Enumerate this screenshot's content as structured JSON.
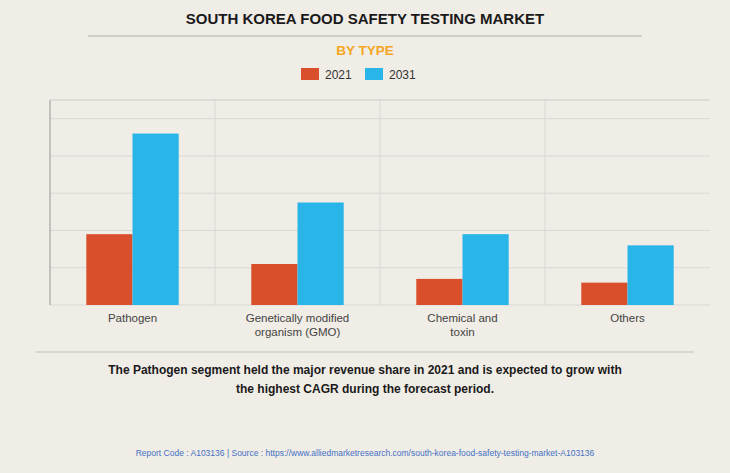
{
  "chart_data": {
    "type": "bar",
    "title": "SOUTH KOREA FOOD SAFETY TESTING MARKET",
    "subtitle": "BY TYPE",
    "categories": [
      "Pathogen",
      "Genetically modified\norganism (GMO)",
      "Chemical and\ntoxin",
      "Others"
    ],
    "series": [
      {
        "name": "2021",
        "color": "#d94f2b",
        "values": [
          38,
          22,
          14,
          12
        ]
      },
      {
        "name": "2031",
        "color": "#29b5e8",
        "values": [
          92,
          55,
          38,
          32
        ]
      }
    ],
    "ylim": [
      0,
      110
    ],
    "yticks": [
      0,
      20,
      40,
      60,
      80,
      100
    ],
    "grid": true,
    "legend": "top",
    "tick_labels": "x",
    "annotations": [
      "The Pathogen segment held the major revenue share in 2021 and is expected to grow with\nthe highest CAGR during the forecast period.",
      "Report Code : A103136  |  Source : https://www.alliedmarketresearch.com/south-korea-food-safety-testing-market-A103136"
    ]
  }
}
